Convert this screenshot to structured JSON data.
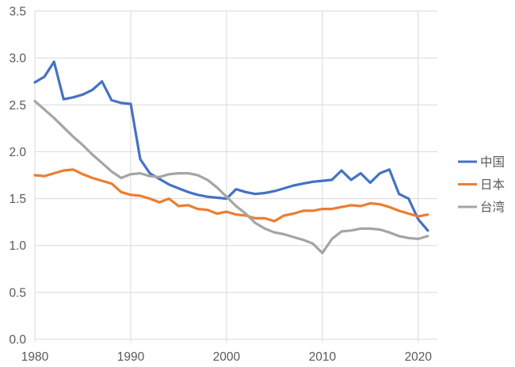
{
  "page": {
    "background": "#FFFFFF"
  },
  "chart_data": {
    "type": "line",
    "title": "",
    "xlabel": "",
    "ylabel": "",
    "grid": true,
    "x": [
      1980,
      1981,
      1982,
      1983,
      1984,
      1985,
      1986,
      1987,
      1988,
      1989,
      1990,
      1991,
      1992,
      1993,
      1994,
      1995,
      1996,
      1997,
      1998,
      1999,
      2000,
      2001,
      2002,
      2003,
      2004,
      2005,
      2006,
      2007,
      2008,
      2009,
      2010,
      2011,
      2012,
      2013,
      2014,
      2015,
      2016,
      2017,
      2018,
      2019,
      2020,
      2021
    ],
    "series": [
      {
        "id": "china",
        "name": "中国",
        "color": "#4472C4",
        "values": [
          2.74,
          2.8,
          2.96,
          2.56,
          2.58,
          2.61,
          2.66,
          2.75,
          2.55,
          2.52,
          2.51,
          1.92,
          1.77,
          1.71,
          1.65,
          1.61,
          1.57,
          1.54,
          1.52,
          1.51,
          1.5,
          1.6,
          1.57,
          1.55,
          1.56,
          1.58,
          1.61,
          1.64,
          1.66,
          1.68,
          1.69,
          1.7,
          1.8,
          1.7,
          1.77,
          1.67,
          1.77,
          1.81,
          1.55,
          1.5,
          1.28,
          1.16
        ]
      },
      {
        "id": "japan",
        "name": "日本",
        "color": "#ED7D31",
        "values": [
          1.75,
          1.74,
          1.77,
          1.8,
          1.81,
          1.76,
          1.72,
          1.69,
          1.66,
          1.57,
          1.54,
          1.53,
          1.5,
          1.46,
          1.5,
          1.42,
          1.43,
          1.39,
          1.38,
          1.34,
          1.36,
          1.33,
          1.32,
          1.29,
          1.29,
          1.26,
          1.32,
          1.34,
          1.37,
          1.37,
          1.39,
          1.39,
          1.41,
          1.43,
          1.42,
          1.45,
          1.44,
          1.41,
          1.37,
          1.34,
          1.31,
          1.33
        ]
      },
      {
        "id": "taiwan",
        "name": "台湾",
        "color": "#A5A5A5",
        "values": [
          2.54,
          2.45,
          2.36,
          2.26,
          2.16,
          2.07,
          1.97,
          1.88,
          1.79,
          1.72,
          1.76,
          1.77,
          1.74,
          1.73,
          1.76,
          1.77,
          1.77,
          1.75,
          1.7,
          1.62,
          1.52,
          1.42,
          1.34,
          1.24,
          1.18,
          1.14,
          1.12,
          1.09,
          1.06,
          1.02,
          0.92,
          1.07,
          1.15,
          1.16,
          1.18,
          1.18,
          1.17,
          1.14,
          1.1,
          1.08,
          1.07,
          1.1
        ]
      }
    ],
    "y_axis": {
      "min": 0,
      "max": 3.5,
      "step": 0.5,
      "tick_labels": [
        "0.0",
        "0.5",
        "1.0",
        "1.5",
        "2.0",
        "2.5",
        "3.0",
        "3.5"
      ]
    },
    "x_axis": {
      "min": 1980,
      "max": 2022,
      "tick_years": [
        1980,
        1990,
        2000,
        2010,
        2020
      ],
      "tick_labels": [
        "1980",
        "1990",
        "2000",
        "2010",
        "2020"
      ]
    },
    "legend": {
      "position": "right",
      "entries": [
        "中国",
        "日本",
        "台湾"
      ]
    },
    "colors": {
      "gridline": "#D9D9D9",
      "axis_line": "#D9D9D9",
      "axis_text": "#595959",
      "legend_text": "#595959",
      "background": "#FFFFFF"
    }
  }
}
